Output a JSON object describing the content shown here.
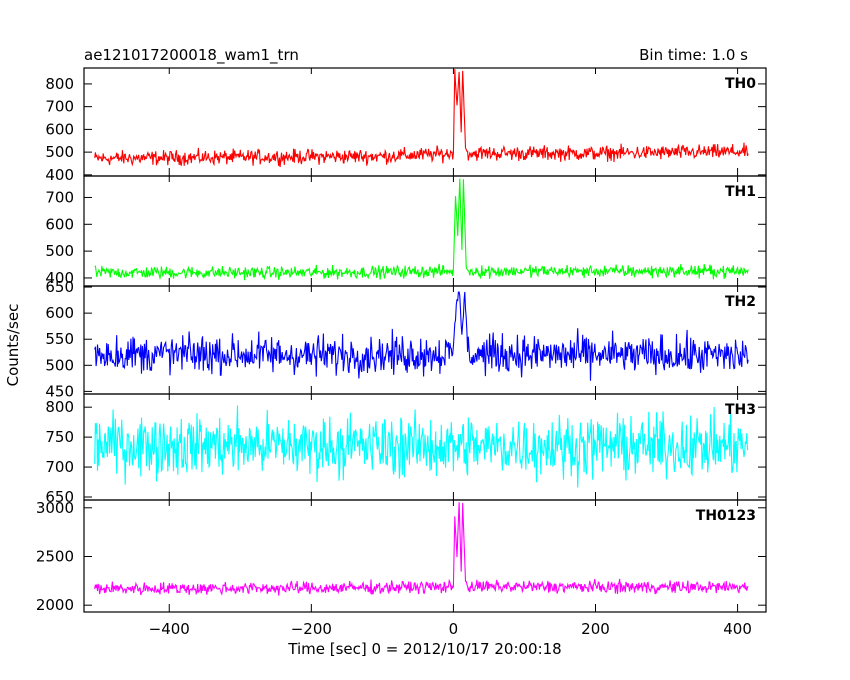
{
  "header": {
    "title": "ae121017200018_wam1_trn",
    "bin_time": "Bin time: 1.0 s"
  },
  "chart_data": {
    "type": "line",
    "title": "ae121017200018_wam1_trn",
    "xlabel": "Time [sec] 0 = 2012/10/17 20:00:18",
    "ylabel": "Counts/sec",
    "xlim": [
      -520,
      440
    ],
    "x_ticks": [
      -400,
      -200,
      0,
      200,
      400
    ],
    "x_tick_labels": [
      "−400",
      "−200",
      "0",
      "200",
      "400"
    ],
    "data_x_range": [
      -505,
      415
    ],
    "bin_time_s": 1.0,
    "grid": false,
    "panels": [
      {
        "name": "TH0",
        "color": "#ff0000",
        "ylim": [
          395,
          870
        ],
        "y_ticks": [
          400,
          500,
          600,
          700,
          800
        ],
        "y_tick_labels": [
          "400",
          "500",
          "600",
          "700",
          "800"
        ],
        "baseline": [
          [
            -505,
            472
          ],
          [
            -300,
            478
          ],
          [
            -100,
            482
          ],
          [
            -10,
            492
          ],
          [
            20,
            495
          ],
          [
            200,
            495
          ],
          [
            415,
            502
          ]
        ],
        "noise_amplitude": 35,
        "burst": [
          [
            0,
            500
          ],
          [
            2,
            860
          ],
          [
            5,
            700
          ],
          [
            8,
            860
          ],
          [
            11,
            580
          ],
          [
            13,
            860
          ],
          [
            17,
            520
          ],
          [
            20,
            500
          ]
        ]
      },
      {
        "name": "TH1",
        "color": "#00ff00",
        "ylim": [
          370,
          780
        ],
        "y_ticks": [
          400,
          500,
          600,
          700
        ],
        "y_tick_labels": [
          "400",
          "500",
          "600",
          "700"
        ],
        "baseline": [
          [
            -505,
            420
          ],
          [
            -200,
            420
          ],
          [
            0,
            425
          ],
          [
            415,
            425
          ]
        ],
        "noise_amplitude": 25,
        "burst": [
          [
            0,
            430
          ],
          [
            3,
            700
          ],
          [
            6,
            560
          ],
          [
            9,
            770
          ],
          [
            12,
            500
          ],
          [
            14,
            770
          ],
          [
            18,
            440
          ],
          [
            22,
            425
          ]
        ]
      },
      {
        "name": "TH2",
        "color": "#0000ff",
        "ylim": [
          445,
          652
        ],
        "y_ticks": [
          450,
          500,
          550,
          600,
          650
        ],
        "y_tick_labels": [
          "450",
          "500",
          "550",
          "600",
          "650"
        ],
        "baseline": [
          [
            -505,
            522
          ],
          [
            -200,
            520
          ],
          [
            0,
            522
          ],
          [
            415,
            518
          ]
        ],
        "noise_amplitude": 40,
        "burst": [
          [
            0,
            540
          ],
          [
            4,
            610
          ],
          [
            8,
            648
          ],
          [
            12,
            560
          ],
          [
            16,
            640
          ],
          [
            20,
            530
          ]
        ]
      },
      {
        "name": "TH3",
        "color": "#00ffff",
        "ylim": [
          645,
          822
        ],
        "y_ticks": [
          650,
          700,
          750,
          800
        ],
        "y_tick_labels": [
          "650",
          "700",
          "750",
          "800"
        ],
        "baseline": [
          [
            -505,
            738
          ],
          [
            -200,
            736
          ],
          [
            0,
            735
          ],
          [
            415,
            735
          ]
        ],
        "noise_amplitude": 55,
        "burst": []
      },
      {
        "name": "TH0123",
        "color": "#ff00ff",
        "ylim": [
          1930,
          3080
        ],
        "y_ticks": [
          2000,
          2500,
          3000
        ],
        "y_tick_labels": [
          "2000",
          "2500",
          "3000"
        ],
        "baseline": [
          [
            -505,
            2170
          ],
          [
            -200,
            2175
          ],
          [
            0,
            2190
          ],
          [
            415,
            2185
          ]
        ],
        "noise_amplitude": 70,
        "burst": [
          [
            0,
            2200
          ],
          [
            2,
            2900
          ],
          [
            5,
            2500
          ],
          [
            8,
            3050
          ],
          [
            11,
            2350
          ],
          [
            13,
            3050
          ],
          [
            17,
            2250
          ],
          [
            20,
            2190
          ]
        ]
      }
    ]
  }
}
